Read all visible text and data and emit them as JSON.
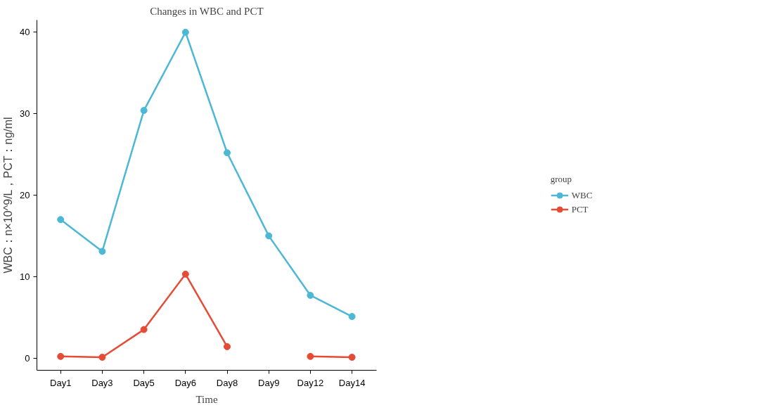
{
  "chart_data": {
    "type": "line",
    "title": "Changes in WBC and PCT",
    "xlabel": "Time",
    "ylabel": "WBC：n×10^9/L，PCT：ng/ml",
    "legend_title": "group",
    "categories": [
      "Day1",
      "Day3",
      "Day5",
      "Day6",
      "Day8",
      "Day9",
      "Day12",
      "Day14"
    ],
    "series": [
      {
        "name": "WBC",
        "color": "#4db8d6",
        "values": [
          17.0,
          13.1,
          30.4,
          40.0,
          25.2,
          15.0,
          7.7,
          5.1
        ]
      },
      {
        "name": "PCT",
        "color": "#e64b35",
        "values": [
          0.2,
          0.1,
          3.5,
          10.3,
          1.4,
          null,
          0.2,
          0.1
        ]
      }
    ],
    "ylim": [
      -1.5,
      41.5
    ],
    "yticks": [
      0,
      10,
      20,
      30,
      40
    ],
    "grid": false,
    "legend": "right",
    "marker": "circle",
    "line_style": "solid"
  }
}
